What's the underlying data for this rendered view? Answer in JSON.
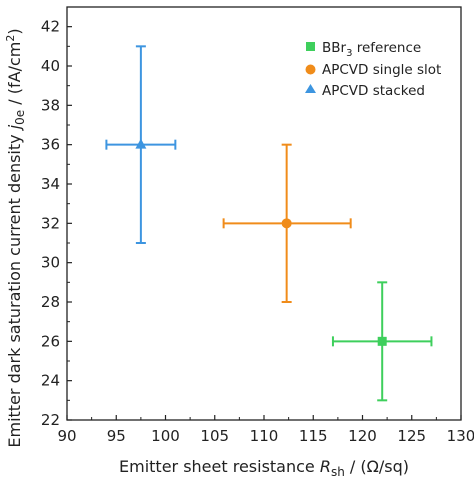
{
  "chart_data": {
    "type": "scatter",
    "x_axis": {
      "label": "Emitter sheet resistance",
      "label_symbol": "R",
      "label_sub": "sh",
      "label_unit": " / (Ω/sq)",
      "range": [
        90,
        130
      ],
      "ticks": [
        90,
        95,
        100,
        105,
        110,
        115,
        120,
        125,
        130
      ]
    },
    "y_axis": {
      "label": "Emitter dark saturation current density",
      "label_symbol": "j",
      "label_sub": "0e",
      "label_unit_pre": " / (fA/cm",
      "label_unit_sup": "2",
      "label_unit_post": ")",
      "range": [
        22,
        43
      ],
      "ticks": [
        22,
        24,
        26,
        28,
        30,
        32,
        34,
        36,
        38,
        40,
        42
      ]
    },
    "grid": false,
    "legend_position": "top-right",
    "series": [
      {
        "name_main": "BBr",
        "name_sub": "3",
        "name_post": " reference",
        "marker": "square",
        "color": "#3ecf5c",
        "points": [
          {
            "x": 122,
            "y": 26,
            "xerr": [
              117,
              127
            ],
            "yerr": [
              23,
              29
            ]
          }
        ]
      },
      {
        "name_main": "APCVD single slot",
        "name_sub": "",
        "name_post": "",
        "marker": "circle",
        "color": "#f08c1a",
        "points": [
          {
            "x": 112.3,
            "y": 32,
            "xerr": [
              105.9,
              118.8
            ],
            "yerr": [
              28,
              36
            ]
          }
        ]
      },
      {
        "name_main": "APCVD stacked",
        "name_sub": "",
        "name_post": "",
        "marker": "triangle",
        "color": "#3d95e0",
        "points": [
          {
            "x": 97.5,
            "y": 36,
            "xerr": [
              94,
              101
            ],
            "yerr": [
              31,
              41
            ]
          }
        ]
      }
    ]
  }
}
